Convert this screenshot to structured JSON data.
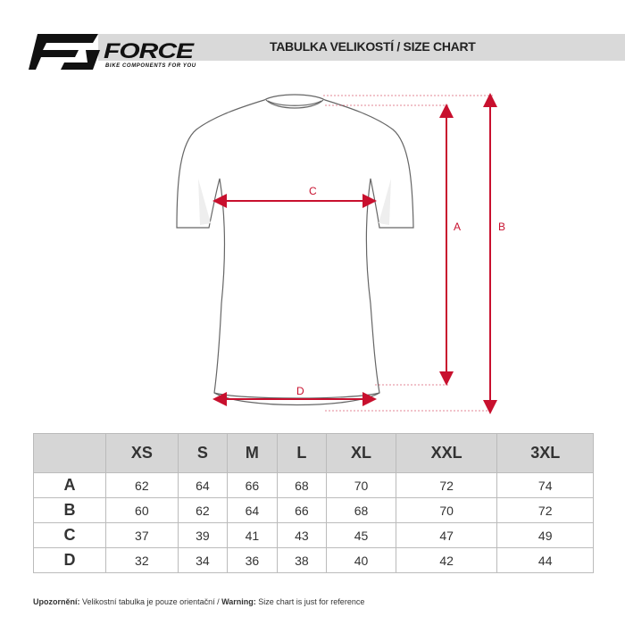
{
  "header": {
    "brand": "FORCE",
    "tagline": "BIKE COMPONENTS FOR YOU",
    "title": "TABULKA VELIKOSTÍ / SIZE CHART"
  },
  "diagram": {
    "labels": {
      "a": "A",
      "b": "B",
      "c": "C",
      "d": "D"
    },
    "accent_color": "#c8102e"
  },
  "table": {
    "columns": [
      "XS",
      "S",
      "M",
      "L",
      "XL",
      "XXL",
      "3XL"
    ],
    "rows": [
      {
        "label": "A",
        "values": [
          "62",
          "64",
          "66",
          "68",
          "70",
          "72",
          "74"
        ]
      },
      {
        "label": "B",
        "values": [
          "60",
          "62",
          "64",
          "66",
          "68",
          "70",
          "72"
        ]
      },
      {
        "label": "C",
        "values": [
          "37",
          "39",
          "41",
          "43",
          "45",
          "47",
          "49"
        ]
      },
      {
        "label": "D",
        "values": [
          "32",
          "34",
          "36",
          "38",
          "40",
          "42",
          "44"
        ]
      }
    ]
  },
  "footer": {
    "warn_cz_label": "Upozornění:",
    "warn_cz_text": " Velikostní tabulka je pouze orientační / ",
    "warn_en_label": "Warning:",
    "warn_en_text": " Size chart is just for reference"
  }
}
